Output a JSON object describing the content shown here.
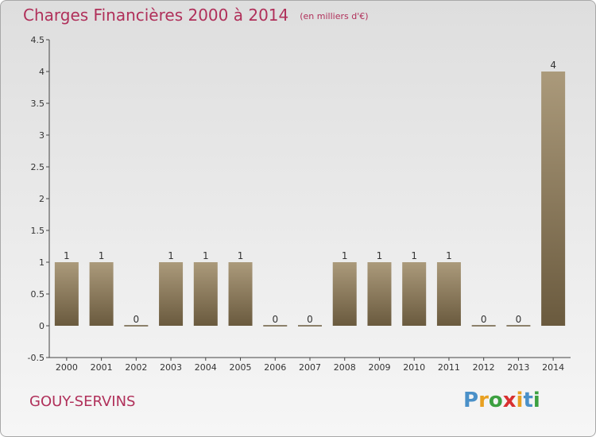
{
  "header": {
    "title": "Charges Financières 2000 à 2014",
    "subtitle": "(en milliers d'€)"
  },
  "footer": {
    "commune": "GOUY-SERVINS"
  },
  "logo": {
    "text": "Proxiti",
    "letters": [
      "P",
      "r",
      "o",
      "x",
      "i",
      "t",
      "i"
    ],
    "colors": [
      "#4a90c8",
      "#e8a020",
      "#3ca040",
      "#d83030",
      "#e8a020",
      "#4a90c8",
      "#3ca040"
    ]
  },
  "colors": {
    "bar_top": "#ab9a7b",
    "bar_bottom": "#6a5a3e",
    "accent": "#b0305a"
  },
  "chart_data": {
    "type": "bar",
    "title": "Charges Financières 2000 à 2014",
    "subtitle": "(en milliers d'€)",
    "categories": [
      "2000",
      "2001",
      "2002",
      "2003",
      "2004",
      "2005",
      "2006",
      "2007",
      "2008",
      "2009",
      "2010",
      "2011",
      "2012",
      "2013",
      "2014"
    ],
    "values": [
      1,
      1,
      0,
      1,
      1,
      1,
      0,
      0,
      1,
      1,
      1,
      1,
      0,
      0,
      4
    ],
    "data_labels": [
      "1",
      "1",
      "0",
      "1",
      "1",
      "1",
      "0",
      "0",
      "1",
      "1",
      "1",
      "1",
      "0",
      "0",
      "4"
    ],
    "ylim": [
      -0.5,
      4.5
    ],
    "yticks": [
      -0.5,
      0,
      0.5,
      1,
      1.5,
      2,
      2.5,
      3,
      3.5,
      4,
      4.5
    ],
    "ytick_labels": [
      "-0.5",
      "0",
      "0.5",
      "1",
      "1.5",
      "2",
      "2.5",
      "3",
      "3.5",
      "4",
      "4.5"
    ],
    "grid": false,
    "legend": "none"
  }
}
